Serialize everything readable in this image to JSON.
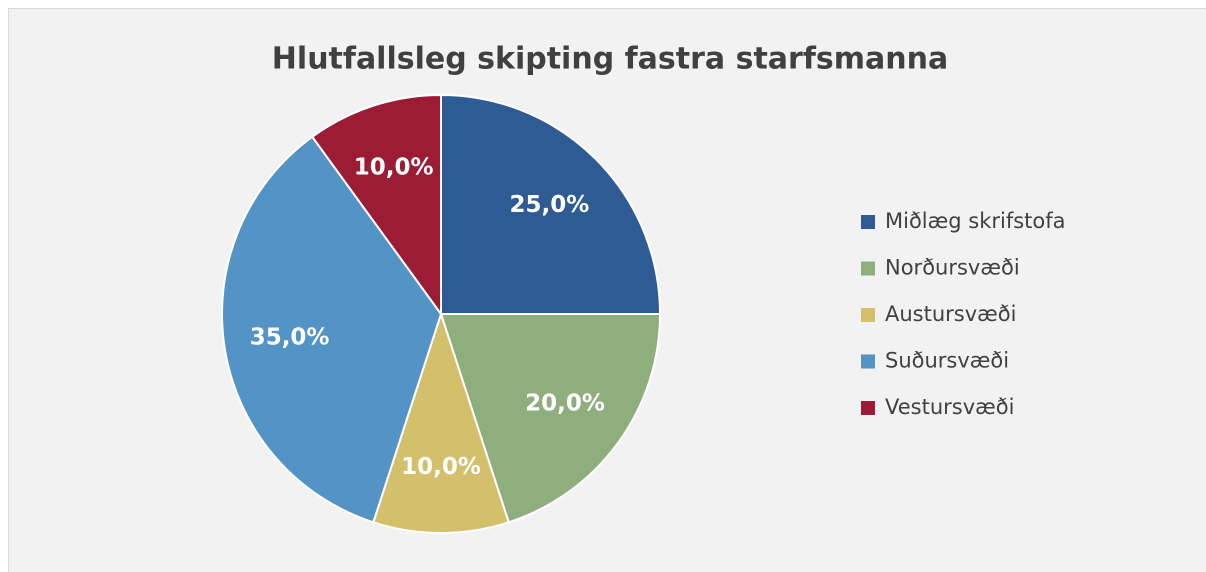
{
  "chart_data": {
    "type": "pie",
    "title": "Hlutfallsleg skipting fastra starfsmanna",
    "categories": [
      "Miðlæg skrifstofa",
      "Norðursvæði",
      "Austursvæði",
      "Suðursvæði",
      "Vestursvæði"
    ],
    "values": [
      25,
      20,
      10,
      35,
      10
    ],
    "value_labels": [
      "25,0%",
      "20,0%",
      "10,0%",
      "35,0%",
      "10,0%"
    ],
    "colors": [
      "#2e5b94",
      "#8fae7d",
      "#d4c06a",
      "#5393c5",
      "#9b1c34"
    ],
    "legend": "right"
  }
}
